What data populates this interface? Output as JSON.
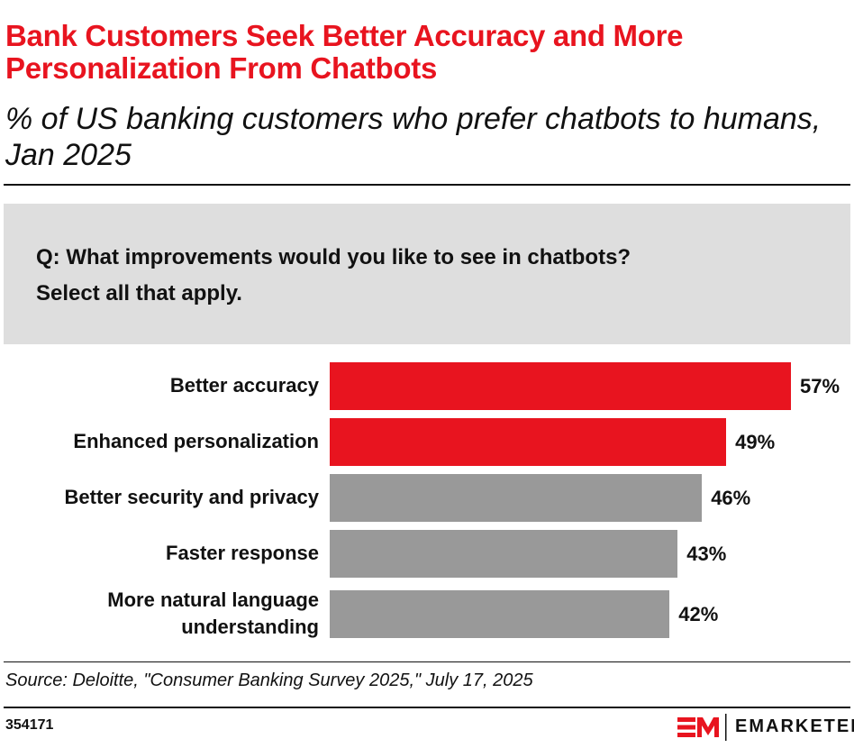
{
  "title": "Bank Customers Seek Better Accuracy and More Personalization From Chatbots",
  "subtitle": "% of US banking customers who prefer chatbots to humans, Jan 2025",
  "question": {
    "line1": "Q: What improvements would you like to see in chatbots?",
    "line2": "Select all that apply."
  },
  "chart_data": {
    "type": "bar",
    "orientation": "horizontal",
    "categories": [
      "Better accuracy",
      "Enhanced personalization",
      "Better security and privacy",
      "Faster response",
      "More natural language understanding"
    ],
    "values": [
      57,
      49,
      46,
      43,
      42
    ],
    "labels": [
      "57%",
      "49%",
      "46%",
      "43%",
      "42%"
    ],
    "colors": [
      "#e8141f",
      "#e8141f",
      "#999999",
      "#999999",
      "#999999"
    ],
    "unit": "%",
    "xlim": [
      0,
      100
    ],
    "grid": false
  },
  "source": "Source: Deloitte, \"Consumer Banking Survey 2025,\" July 17, 2025",
  "chart_id": "354171",
  "brand": {
    "logo_text": "EM",
    "name": "EMARKETER",
    "color": "#e8141f"
  }
}
